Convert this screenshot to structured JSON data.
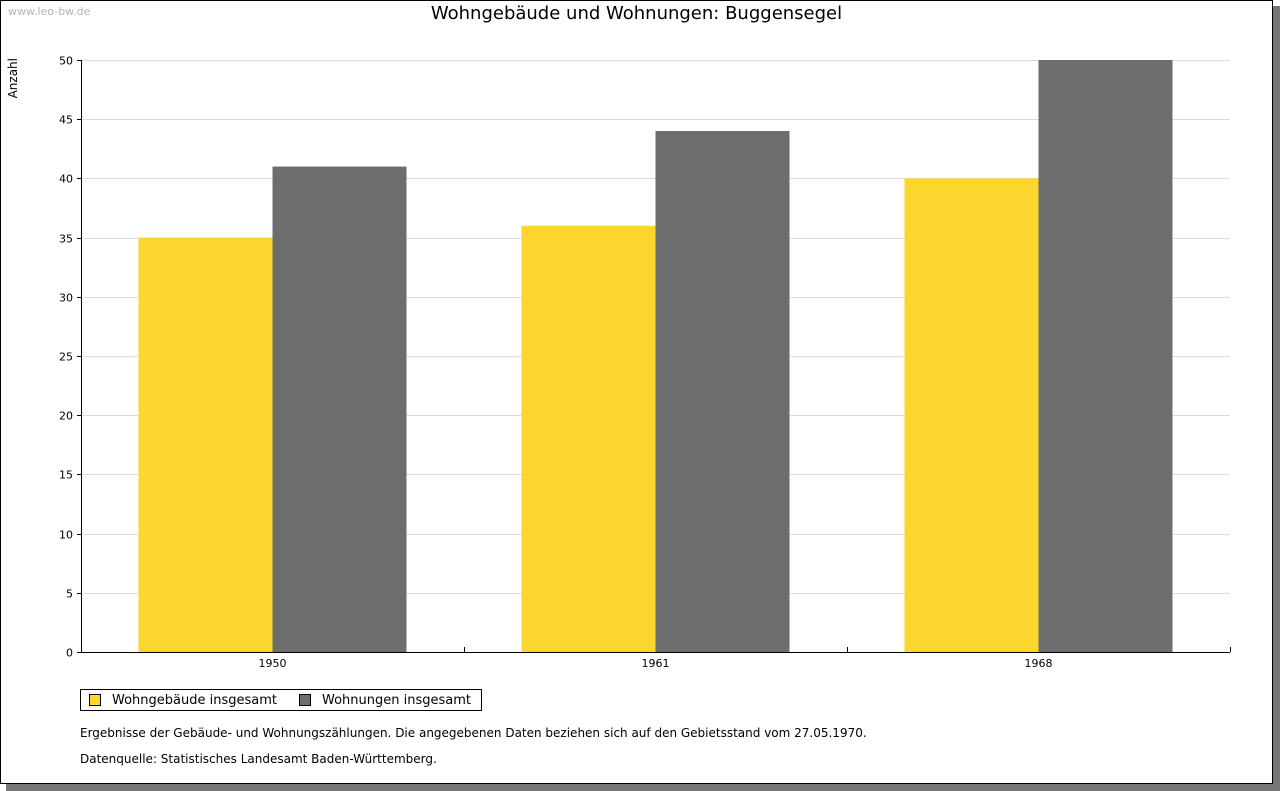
{
  "watermark": "www.leo-bw.de",
  "chart_data": {
    "type": "bar",
    "title": "Wohngebäude und Wohnungen: Buggensegel",
    "xlabel": "",
    "ylabel": "Anzahl",
    "categories": [
      "1950",
      "1961",
      "1968"
    ],
    "series": [
      {
        "name": "Wohngebäude insgesamt",
        "color": "#fcd62c",
        "values": [
          35,
          36,
          40
        ]
      },
      {
        "name": "Wohnungen insgesamt",
        "color": "#6d6d6d",
        "values": [
          41,
          44,
          50
        ]
      }
    ],
    "ylim": [
      0,
      50
    ],
    "yticks": [
      0,
      5,
      10,
      15,
      20,
      25,
      30,
      35,
      40,
      45,
      50
    ],
    "grid": true,
    "legend": "bottom-left"
  },
  "notes": {
    "line1": "Ergebnisse der Gebäude- und Wohnungszählungen. Die angegebenen Daten beziehen sich auf den Gebietsstand vom 27.05.1970.",
    "line2": "Datenquelle: Statistisches Landesamt Baden-Württemberg."
  }
}
